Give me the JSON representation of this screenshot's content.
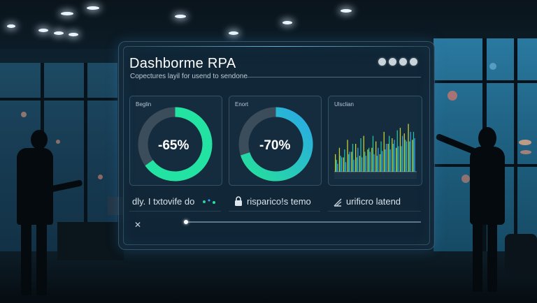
{
  "dashboard": {
    "title": "Dashborme RPA",
    "subtitle": "Copectures layil for usend to sendone",
    "window_controls": [
      "dot",
      "dot",
      "dot",
      "dot"
    ],
    "cards": [
      {
        "label": "Beglin",
        "value_text": "-65%",
        "value": 65,
        "arc_color": "#22e3a2",
        "track_color": "#3b4c5a"
      },
      {
        "label": "Enort",
        "value_text": "-70%",
        "value": 70,
        "arc_color": "#25d49a",
        "arc_color2": "#2aa9e6",
        "track_color": "#3b4c5a"
      },
      {
        "label": "Ulsclian",
        "chart_type": "bar"
      }
    ],
    "rows": [
      {
        "text": "dly. I txtovife do",
        "icon": "sparkle-icon"
      },
      {
        "text": "risparico!s temo",
        "icon": "lock-icon"
      },
      {
        "text": "urificro latend",
        "icon": "chart-up-icon"
      }
    ]
  },
  "chart_data": {
    "type": "bar",
    "title": "Ulsclian",
    "series": [
      {
        "values": [
          22,
          30,
          18,
          40,
          25,
          35,
          20,
          45,
          28,
          30,
          38,
          22,
          50,
          35,
          42,
          30,
          55,
          48,
          60,
          40
        ]
      },
      {
        "values": [
          15,
          20,
          28,
          22,
          35,
          18,
          42,
          25,
          30,
          45,
          20,
          38,
          28,
          45,
          35,
          52,
          32,
          40,
          38,
          50
        ]
      },
      {
        "values": [
          10,
          18,
          12,
          25,
          15,
          30,
          18,
          20,
          25,
          22,
          30,
          26,
          35,
          28,
          40,
          32,
          45,
          38,
          50,
          42
        ]
      }
    ],
    "colors": [
      "#d9e23a",
      "#22d3a4",
      "#3aa4ff"
    ],
    "ylim": [
      0,
      70
    ]
  }
}
